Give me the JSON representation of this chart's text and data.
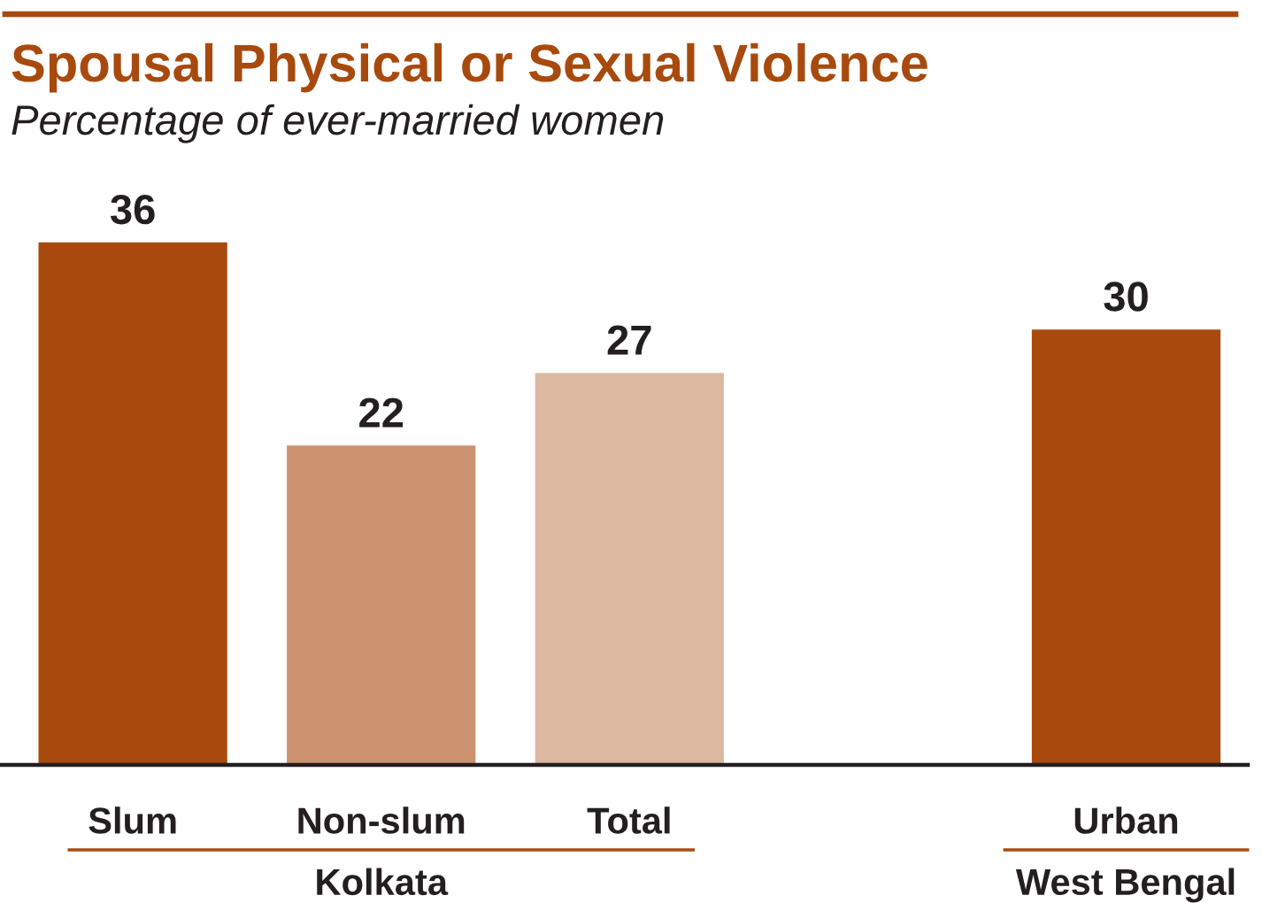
{
  "chart_data": {
    "type": "bar",
    "title": "Spousal Physical or Sexual Violence",
    "subtitle": "Percentage of ever-married women",
    "categories": [
      "Slum",
      "Non-slum",
      "Total",
      null,
      "Urban"
    ],
    "values": [
      36,
      22,
      27,
      null,
      30
    ],
    "colors": [
      "#a84a0e",
      "#cc9270",
      "#dbb8a0",
      null,
      "#a84a0e"
    ],
    "data_labels": true,
    "annotations": [
      "Kolkata",
      "West Bengal"
    ]
  }
}
